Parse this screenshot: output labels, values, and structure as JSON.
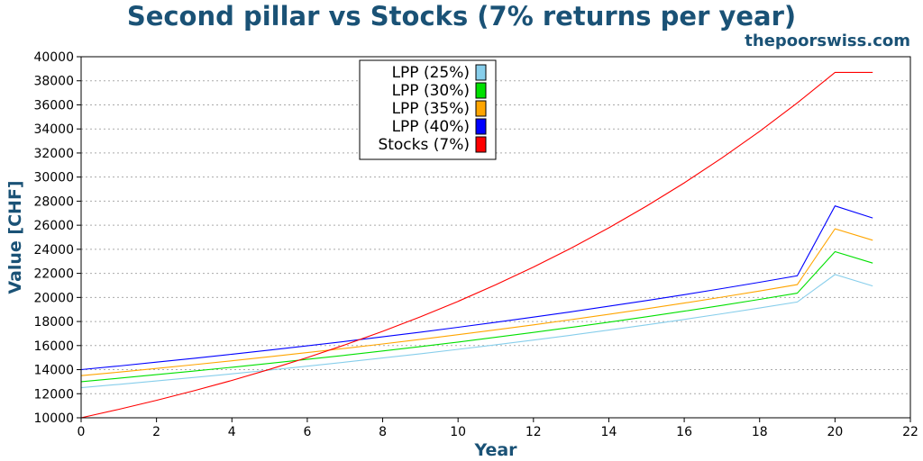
{
  "chart_data": {
    "type": "line",
    "title": "Second pillar vs Stocks (7% returns per year)",
    "watermark": "thepoorswiss.com",
    "xlabel": "Year",
    "ylabel": "Value [CHF]",
    "xlim": [
      0,
      22
    ],
    "ylim": [
      10000,
      40000
    ],
    "xticks": [
      0,
      2,
      4,
      6,
      8,
      10,
      12,
      14,
      16,
      18,
      20,
      22
    ],
    "yticks": [
      10000,
      12000,
      14000,
      16000,
      18000,
      20000,
      22000,
      24000,
      26000,
      28000,
      30000,
      32000,
      34000,
      36000,
      38000,
      40000
    ],
    "grid": "horizontal-dotted",
    "legend_position": "top-center",
    "x": [
      0,
      1,
      2,
      3,
      4,
      5,
      6,
      7,
      8,
      9,
      10,
      11,
      12,
      13,
      14,
      15,
      16,
      17,
      18,
      19,
      20,
      21
    ],
    "series": [
      {
        "name": "LPP (25%)",
        "color": "#87ceeb",
        "values": [
          12500,
          12775,
          13059,
          13352,
          13654,
          13966,
          14288,
          14620,
          14964,
          15319,
          15686,
          16066,
          16458,
          16864,
          17285,
          17720,
          18171,
          18638,
          19122,
          19624,
          21900,
          20950
        ]
      },
      {
        "name": "LPP (30%)",
        "color": "#00e000",
        "values": [
          13000,
          13285,
          13580,
          13883,
          14196,
          14519,
          14852,
          15195,
          15550,
          15916,
          16295,
          16687,
          17092,
          17511,
          17945,
          18394,
          18859,
          19340,
          19839,
          20355,
          23800,
          22850
        ]
      },
      {
        "name": "LPP (35%)",
        "color": "#ffa500",
        "values": [
          13500,
          13795,
          14100,
          14414,
          14738,
          15072,
          15416,
          15771,
          16137,
          16515,
          16904,
          17307,
          17723,
          18153,
          18598,
          19058,
          19534,
          20026,
          20536,
          21063,
          25700,
          24750
        ]
      },
      {
        "name": "LPP (40%)",
        "color": "#0000ff",
        "values": [
          14000,
          14305,
          14620,
          14944,
          15279,
          15624,
          15980,
          16347,
          16725,
          17116,
          17519,
          17935,
          18364,
          18808,
          19266,
          19740,
          20229,
          20734,
          21257,
          21796,
          27600,
          26600
        ]
      },
      {
        "name": "Stocks (7%)",
        "color": "#ff0000",
        "values": [
          10000,
          10700,
          11449,
          12250,
          13108,
          14026,
          15007,
          16058,
          17182,
          18385,
          19672,
          21049,
          22522,
          24098,
          25785,
          27590,
          29522,
          31588,
          33799,
          36165,
          38697,
          38697
        ]
      }
    ]
  }
}
